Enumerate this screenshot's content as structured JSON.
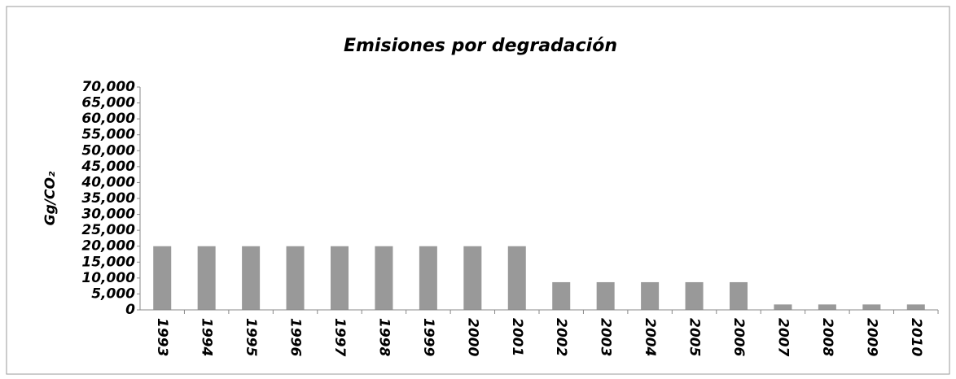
{
  "chart_data": {
    "type": "bar",
    "title": "Emisiones por degradación",
    "ylabel": "Gg/CO₂",
    "categories": [
      "1993",
      "1994",
      "1995",
      "1996",
      "1997",
      "1998",
      "1999",
      "2000",
      "2001",
      "2002",
      "2003",
      "2004",
      "2005",
      "2006",
      "2007",
      "2008",
      "2009",
      "2010"
    ],
    "values": [
      20000,
      20000,
      20000,
      20000,
      20000,
      20000,
      20000,
      20000,
      20000,
      8700,
      8700,
      8700,
      8700,
      8700,
      1700,
      1700,
      1700,
      1700
    ],
    "color": "#999999",
    "ylim": [
      0,
      70000
    ],
    "yticks": [
      0,
      {
        "value": 5000,
        "label": "5,000"
      },
      {
        "value": 10000,
        "label": "10,000"
      },
      {
        "value": 15000,
        "label": "15,000"
      },
      {
        "value": 20000,
        "label": "20,000"
      },
      {
        "value": 25000,
        "label": "25,000"
      },
      {
        "value": 30000,
        "label": "30,000"
      },
      {
        "value": 35000,
        "label": "35,000"
      },
      {
        "value": 40000,
        "label": "40,000"
      },
      {
        "value": 45000,
        "label": "45,000"
      },
      {
        "value": 50000,
        "label": "50,000"
      },
      {
        "value": 55000,
        "label": "55,000"
      },
      {
        "value": 60000,
        "label": "60,000"
      },
      {
        "value": 65000,
        "label": "65,000"
      },
      {
        "value": 70000,
        "label": "70,000"
      }
    ],
    "grid": false
  }
}
